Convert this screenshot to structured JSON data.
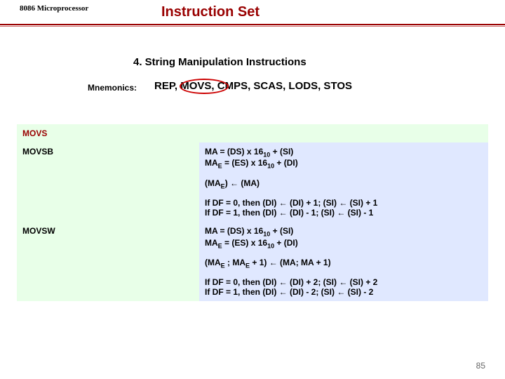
{
  "header": {
    "chip": "8086 Microprocessor",
    "title": "Instruction Set"
  },
  "section": {
    "subtitle": "4. String Manipulation Instructions",
    "mnemonics_label": "Mnemonics:",
    "mnemonics_value": "REP, MOVS, CMPS, SCAS, LODS, STOS"
  },
  "table": {
    "header": "MOVS",
    "rows": [
      {
        "mnemonic": "MOVSB",
        "desc1_line1": "MA = (DS) x 16₁₀ + (SI)",
        "desc1_line2": "MAE = (ES) x 16₁₀ + (DI)",
        "desc2": "(MAE) ← (MA)",
        "desc3_line1": "If DF = 0, then (DI) ← (DI) + 1; (SI) ← (SI) + 1",
        "desc3_line2": "If DF = 1, then (DI) ← (DI) - 1; (SI) ← (SI) - 1"
      },
      {
        "mnemonic": "MOVSW",
        "desc1_line1": "MA = (DS) x 16₁₀ + (SI)",
        "desc1_line2": "MAE = (ES) x 16₁₀ + (DI)",
        "desc2": "(MAE ; MAE + 1) ← (MA; MA + 1)",
        "desc3_line1": "If DF = 0, then (DI) ← (DI) + 2; (SI) ← (SI) + 2",
        "desc3_line2": "If DF = 1, then (DI) ← (DI) - 2; (SI) ← (SI) - 2"
      }
    ]
  },
  "page_number": "85",
  "colors": {
    "title_color": "#990000",
    "highlight_border": "#cc0000",
    "bg_green": "#e8ffe8",
    "bg_blue": "#e0e8ff",
    "text_black": "#000000",
    "page_num_color": "#666666"
  }
}
